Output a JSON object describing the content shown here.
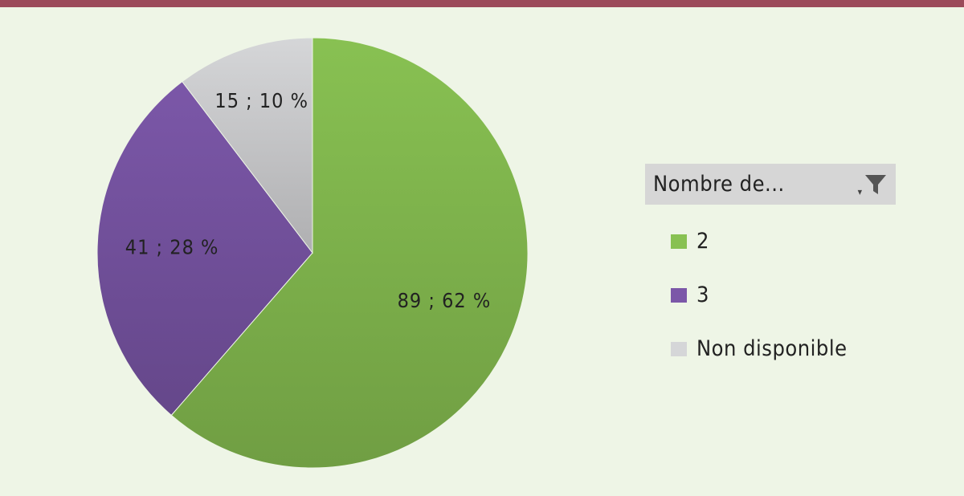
{
  "chart_data": {
    "type": "pie",
    "categories": [
      "2",
      "3",
      "Non disponible"
    ],
    "values": [
      89,
      41,
      15
    ],
    "percent_labels": [
      "62 %",
      "28 %",
      "10 %"
    ],
    "data_labels": [
      "89 ; 62 %",
      "41 ; 28 %",
      "15 ; 10 %"
    ],
    "colors": [
      "#88c152",
      "#7b57a8",
      "#d5d6d8"
    ],
    "start_angle_deg": 0,
    "direction": "clockwise",
    "legend_position": "right"
  },
  "legend": {
    "title": "Nombre de...",
    "filter_icon": "filter-icon",
    "items": [
      {
        "label": "2",
        "color": "#88c152"
      },
      {
        "label": "3",
        "color": "#7b57a8"
      },
      {
        "label": "Non disponible",
        "color": "#d5d6d8"
      }
    ]
  },
  "colors": {
    "background": "#eef5e6",
    "top_bar": "#9b4a5a",
    "legend_header": "#d6d6d6"
  }
}
